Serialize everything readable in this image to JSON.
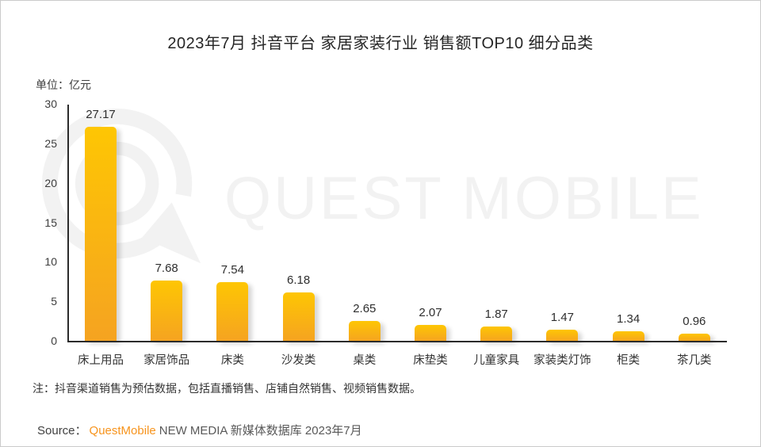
{
  "title": "2023年7月 抖音平台 家居家装行业 销售额TOP10 细分品类",
  "unit_label": "单位：亿元",
  "watermark": {
    "text": "QUEST MOBILE",
    "color": "#f2f2f2"
  },
  "note": "注：抖音渠道销售为预估数据，包括直播销售、店铺自然销售、视频销售数据。",
  "source": {
    "prefix": "Source：",
    "brand": "QuestMobile",
    "suffix": "NEW MEDIA 新媒体数据库 2023年7月",
    "brand_color": "#f7941d"
  },
  "chart_data": {
    "type": "bar",
    "title": "2023年7月 抖音平台 家居家装行业 销售额TOP10 细分品类",
    "unit": "亿元",
    "categories": [
      "床上用品",
      "家居饰品",
      "床类",
      "沙发类",
      "桌类",
      "床垫类",
      "儿童家具",
      "家装类灯饰",
      "柜类",
      "茶几类"
    ],
    "values": [
      27.17,
      7.68,
      7.54,
      6.18,
      2.65,
      2.07,
      1.87,
      1.47,
      1.34,
      0.96
    ],
    "xlabel": "",
    "ylabel": "亿元",
    "ylim": [
      0,
      30
    ],
    "yticks": [
      0,
      5,
      10,
      15,
      20,
      25,
      30
    ],
    "grid": false,
    "legend": null,
    "bar_color_top": "#fec603",
    "bar_color_bottom": "#f5a321",
    "value_labels_shown": true
  }
}
